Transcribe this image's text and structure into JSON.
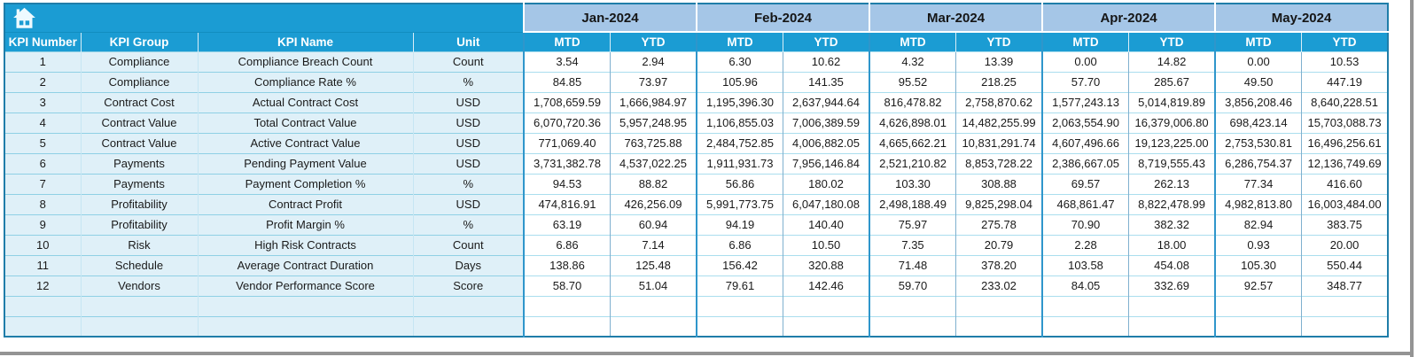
{
  "sheet": {
    "months": [
      "Jan-2024",
      "Feb-2024",
      "Mar-2024",
      "Apr-2024",
      "May-2024"
    ],
    "period_labels": {
      "mtd": "MTD",
      "ytd": "YTD"
    },
    "left_columns": [
      "KPI Number",
      "KPI Group",
      "KPI Name",
      "Unit"
    ],
    "rows": [
      {
        "cells": [
          "1",
          "Compliance",
          "Compliance Breach Count",
          "Count",
          "3.54",
          "2.94",
          "6.30",
          "10.62",
          "4.32",
          "13.39",
          "0.00",
          "14.82",
          "0.00",
          "10.53"
        ]
      },
      {
        "cells": [
          "2",
          "Compliance",
          "Compliance Rate %",
          "%",
          "84.85",
          "73.97",
          "105.96",
          "141.35",
          "95.52",
          "218.25",
          "57.70",
          "285.67",
          "49.50",
          "447.19"
        ]
      },
      {
        "cells": [
          "3",
          "Contract Cost",
          "Actual Contract Cost",
          "USD",
          "1,708,659.59",
          "1,666,984.97",
          "1,195,396.30",
          "2,637,944.64",
          "816,478.82",
          "2,758,870.62",
          "1,577,243.13",
          "5,014,819.89",
          "3,856,208.46",
          "8,640,228.51"
        ]
      },
      {
        "cells": [
          "4",
          "Contract Value",
          "Total Contract Value",
          "USD",
          "6,070,720.36",
          "5,957,248.95",
          "1,106,855.03",
          "7,006,389.59",
          "4,626,898.01",
          "14,482,255.99",
          "2,063,554.90",
          "16,379,006.80",
          "698,423.14",
          "15,703,088.73"
        ]
      },
      {
        "cells": [
          "5",
          "Contract Value",
          "Active Contract Value",
          "USD",
          "771,069.40",
          "763,725.88",
          "2,484,752.85",
          "4,006,882.05",
          "4,665,662.21",
          "10,831,291.74",
          "4,607,496.66",
          "19,123,225.00",
          "2,753,530.81",
          "16,496,256.61"
        ]
      },
      {
        "cells": [
          "6",
          "Payments",
          "Pending Payment Value",
          "USD",
          "3,731,382.78",
          "4,537,022.25",
          "1,911,931.73",
          "7,956,146.84",
          "2,521,210.82",
          "8,853,728.22",
          "2,386,667.05",
          "8,719,555.43",
          "6,286,754.37",
          "12,136,749.69"
        ]
      },
      {
        "cells": [
          "7",
          "Payments",
          "Payment Completion %",
          "%",
          "94.53",
          "88.82",
          "56.86",
          "180.02",
          "103.30",
          "308.88",
          "69.57",
          "262.13",
          "77.34",
          "416.60"
        ]
      },
      {
        "cells": [
          "8",
          "Profitability",
          "Contract Profit",
          "USD",
          "474,816.91",
          "426,256.09",
          "5,991,773.75",
          "6,047,180.08",
          "2,498,188.49",
          "9,825,298.04",
          "468,861.47",
          "8,822,478.99",
          "4,982,813.80",
          "16,003,484.00"
        ]
      },
      {
        "cells": [
          "9",
          "Profitability",
          "Profit Margin %",
          "%",
          "63.19",
          "60.94",
          "94.19",
          "140.40",
          "75.97",
          "275.78",
          "70.90",
          "382.32",
          "82.94",
          "383.75"
        ]
      },
      {
        "cells": [
          "10",
          "Risk",
          "High Risk Contracts",
          "Count",
          "6.86",
          "7.14",
          "6.86",
          "10.50",
          "7.35",
          "20.79",
          "2.28",
          "18.00",
          "0.93",
          "20.00"
        ]
      },
      {
        "cells": [
          "11",
          "Schedule",
          "Average Contract Duration",
          "Days",
          "138.86",
          "125.48",
          "156.42",
          "320.88",
          "71.48",
          "378.20",
          "103.58",
          "454.08",
          "105.30",
          "550.44"
        ]
      },
      {
        "cells": [
          "12",
          "Vendors",
          "Vendor Performance Score",
          "Score",
          "58.70",
          "51.04",
          "79.61",
          "142.46",
          "59.70",
          "233.02",
          "84.05",
          "332.69",
          "92.57",
          "348.77"
        ]
      }
    ],
    "empty_row_count": 2
  },
  "colors": {
    "header_cyan": "#1b9cd3",
    "month_header_blue": "#a5c6e7",
    "left_cell_blue": "#dff0f8",
    "data_cell_white": "#ffffff",
    "outer_border": "#1f7da9"
  },
  "icons": {
    "corner": "home-icon"
  }
}
